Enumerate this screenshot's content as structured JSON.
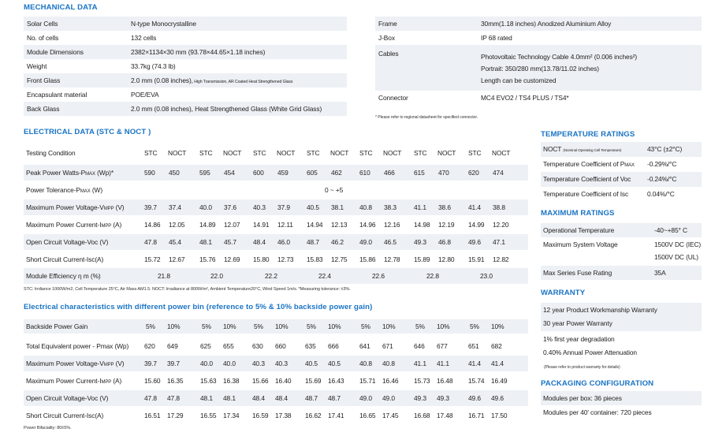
{
  "mechanical": {
    "title": "MECHANICAL DATA",
    "left_rows": [
      {
        "label": "Solar Cells",
        "value": "N-type Monocrystalline"
      },
      {
        "label": "No. of cells",
        "value": "132 cells"
      },
      {
        "label": "Module Dimensions",
        "value": "2382×1134×30 mm (93.78×44.65×1.18 inches)"
      },
      {
        "label": "Weight",
        "value": "33.7kg (74.3 lb)"
      },
      {
        "label": "Front Glass",
        "value": "2.0 mm (0.08 inches),",
        "value_small": "High Transmission, AR Coated Heat Strengthened Glass"
      },
      {
        "label": "Encapsulant material",
        "value": "POE/EVA"
      },
      {
        "label": "Back Glass",
        "value": "2.0 mm (0.08 inches), Heat Strengthened Glass (White Grid Glass)"
      }
    ],
    "right_rows": [
      {
        "label": "Frame",
        "lines": [
          "30mm(1.18 inches) Anodized Aluminium Alloy"
        ]
      },
      {
        "label": "J-Box",
        "lines": [
          "IP 68 rated"
        ]
      },
      {
        "label": "Cables",
        "lines": [
          "Photovoltaic Technology Cable 4.0mm² (0.006 inches²)",
          "Portrait: 350/280 mm(13.78/11.02 inches)",
          "Length can be customized"
        ]
      },
      {
        "label": "Connector",
        "lines": [
          "MC4 EVO2 / TS4 PLUS / TS4*"
        ]
      }
    ],
    "connector_note": "* Please refer to regional datasheet for specified connector."
  },
  "electrical": {
    "title": "ELECTRICAL DATA (STC & NOCT )",
    "header": {
      "label": "Testing Condition",
      "stc": "STC",
      "noct": "NOCT"
    },
    "rows": [
      {
        "label": "Peak Power Watts-Pmax (Wp)*",
        "values": [
          "590",
          "450",
          "595",
          "454",
          "600",
          "459",
          "605",
          "462",
          "610",
          "466",
          "615",
          "470",
          "620",
          "474"
        ]
      },
      {
        "label": "Power Tolerance-Pmax (W)",
        "merged": "0 ~ +5"
      },
      {
        "label": "Maximum Power Voltage-Vmpp (V)",
        "values": [
          "39.7",
          "37.4",
          "40.0",
          "37.6",
          "40.3",
          "37.9",
          "40.5",
          "38.1",
          "40.8",
          "38.3",
          "41.1",
          "38.6",
          "41.4",
          "38.8"
        ]
      },
      {
        "label": "Maximum Power Current-Impp (A)",
        "values": [
          "14.86",
          "12.05",
          "14.89",
          "12.07",
          "14.91",
          "12.11",
          "14.94",
          "12.13",
          "14.96",
          "12.16",
          "14.98",
          "12.19",
          "14.99",
          "12.20"
        ]
      },
      {
        "label": "Open Circuit Voltage-Voc (V)",
        "values": [
          "47.8",
          "45.4",
          "48.1",
          "45.7",
          "48.4",
          "46.0",
          "48.7",
          "46.2",
          "49.0",
          "46.5",
          "49.3",
          "46.8",
          "49.6",
          "47.1"
        ]
      },
      {
        "label": "Short Circuit Current-Isc(A)",
        "values": [
          "15.72",
          "12.67",
          "15.76",
          "12.69",
          "15.80",
          "12.73",
          "15.83",
          "12.75",
          "15.86",
          "12.78",
          "15.89",
          "12.80",
          "15.91",
          "12.82"
        ]
      },
      {
        "label": "Module Efficiency η m (%)",
        "group_values": [
          "21.8",
          "22.0",
          "22.2",
          "22.4",
          "22.6",
          "22.8",
          "23.0"
        ]
      }
    ],
    "footnote": "STC: Irrdiance 1000W/m2, Cell Temperature 25°C, Air Mass AM1.5.   NOCT: Irradiance at 800W/m², Ambient Temperature20°C, Wind Speed 1m/s.   *Measuring tolerance: ±3%."
  },
  "bifacial": {
    "title": "Electrical characteristics with different power bin (reference to 5% & 10% backside power gain)",
    "header": {
      "label": "Backside Power Gain",
      "a": "5%",
      "b": "10%"
    },
    "rows": [
      {
        "label": "Total Equivalent power - Pmax (Wp)",
        "values": [
          "620",
          "649",
          "625",
          "655",
          "630",
          "660",
          "635",
          "666",
          "641",
          "671",
          "646",
          "677",
          "651",
          "682"
        ]
      },
      {
        "label": "Maximum Power Voltage-Vmpp (V)",
        "values": [
          "39.7",
          "39.7",
          "40.0",
          "40.0",
          "40.3",
          "40.3",
          "40.5",
          "40.5",
          "40.8",
          "40.8",
          "41.1",
          "41.1",
          "41.4",
          "41.4"
        ]
      },
      {
        "label": "Maximum Power Current-Impp (A)",
        "values": [
          "15.60",
          "16.35",
          "15.63",
          "16.38",
          "15.66",
          "16.40",
          "15.69",
          "16.43",
          "15.71",
          "16.46",
          "15.73",
          "16.48",
          "15.74",
          "16.49"
        ]
      },
      {
        "label": "Open Circuit Voltage-Voc (V)",
        "values": [
          "47.8",
          "47.8",
          "48.1",
          "48.1",
          "48.4",
          "48.4",
          "48.7",
          "48.7",
          "49.0",
          "49.0",
          "49.3",
          "49.3",
          "49.6",
          "49.6"
        ]
      },
      {
        "label": "Short Circuit Current-Isc(A)",
        "values": [
          "16.51",
          "17.29",
          "16.55",
          "17.34",
          "16.59",
          "17.38",
          "16.62",
          "17.41",
          "16.65",
          "17.45",
          "16.68",
          "17.48",
          "16.71",
          "17.50"
        ]
      }
    ],
    "footnote": "Power Bifaciality: 80±5%."
  },
  "temperature": {
    "title": "TEMPERATURE RATINGS",
    "rows": [
      {
        "label": "NOCT",
        "label_small": "(Nominal Operating Cell Temperature)",
        "value": "43°C (±2°C)"
      },
      {
        "label": "Temperature Coefficient of Pmax",
        "value": "-0.29%/°C"
      },
      {
        "label": "Temperature Coefficient of Voc",
        "value": "-0.24%/°C"
      },
      {
        "label": "Temperature Coefficient of Isc",
        "value": "0.04%/°C"
      }
    ]
  },
  "maximum": {
    "title": "MAXIMUM RATINGS",
    "rows": [
      {
        "label": "Operational Temperature",
        "lines": [
          "-40~+85° C"
        ]
      },
      {
        "label": "Maximum System Voltage",
        "lines": [
          "1500V DC (IEC)",
          "1500V DC (UL)"
        ]
      },
      {
        "label": "Max Series Fuse Rating",
        "lines": [
          "35A"
        ]
      }
    ]
  },
  "warranty": {
    "title": "WARRANTY",
    "lines": [
      "12 year Product Workmanship Warranty",
      "30 year Power Warranty",
      "1% first year degradation",
      "0.40% Annual Power Attenuation"
    ],
    "note": "(Please refer to product warranty for details)"
  },
  "packaging": {
    "title": "PACKAGING CONFIGURATION",
    "lines": [
      "Modules per box: 36 pieces",
      "Modules per 40' container: 720 pieces"
    ]
  },
  "colors": {
    "accent": "#1a74c4",
    "row_shade": "#edf0f4"
  }
}
